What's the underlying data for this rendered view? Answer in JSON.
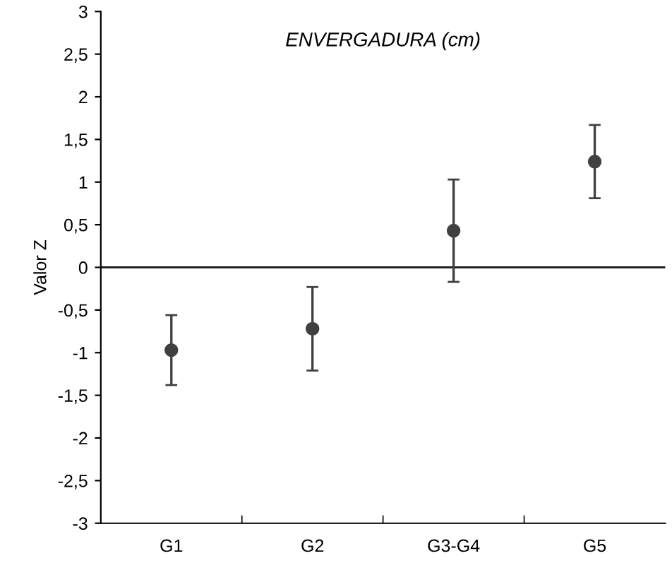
{
  "chart_data": {
    "type": "scatter",
    "title": "ENVERGADURA (cm)",
    "ylabel": "Valor Z",
    "categories": [
      "G1",
      "G2",
      "G3-G4",
      "G5"
    ],
    "series": [
      {
        "color": "#404040",
        "values": [
          -0.97,
          -0.72,
          0.43,
          1.24
        ],
        "errors": [
          0.41,
          0.49,
          0.6,
          0.43
        ]
      }
    ],
    "marker": "circle",
    "grid": false,
    "legend": false,
    "ylim": [
      -3,
      3
    ],
    "yticks": [
      {
        "value": -3,
        "label": "-3"
      },
      {
        "value": -2.5,
        "label": "-2,5"
      },
      {
        "value": -2,
        "label": "-2"
      },
      {
        "value": -1.5,
        "label": "-1,5"
      },
      {
        "value": -1,
        "label": "-1"
      },
      {
        "value": -0.5,
        "label": "-0,5"
      },
      0,
      {
        "value": 0.5,
        "label": "0,5"
      },
      1,
      {
        "value": 1.5,
        "label": "1,5"
      },
      2,
      {
        "value": 2.5,
        "label": "2,5"
      },
      3
    ],
    "ref_lines": [
      {
        "axis": "y",
        "value": 0,
        "color": "#222222"
      }
    ]
  }
}
